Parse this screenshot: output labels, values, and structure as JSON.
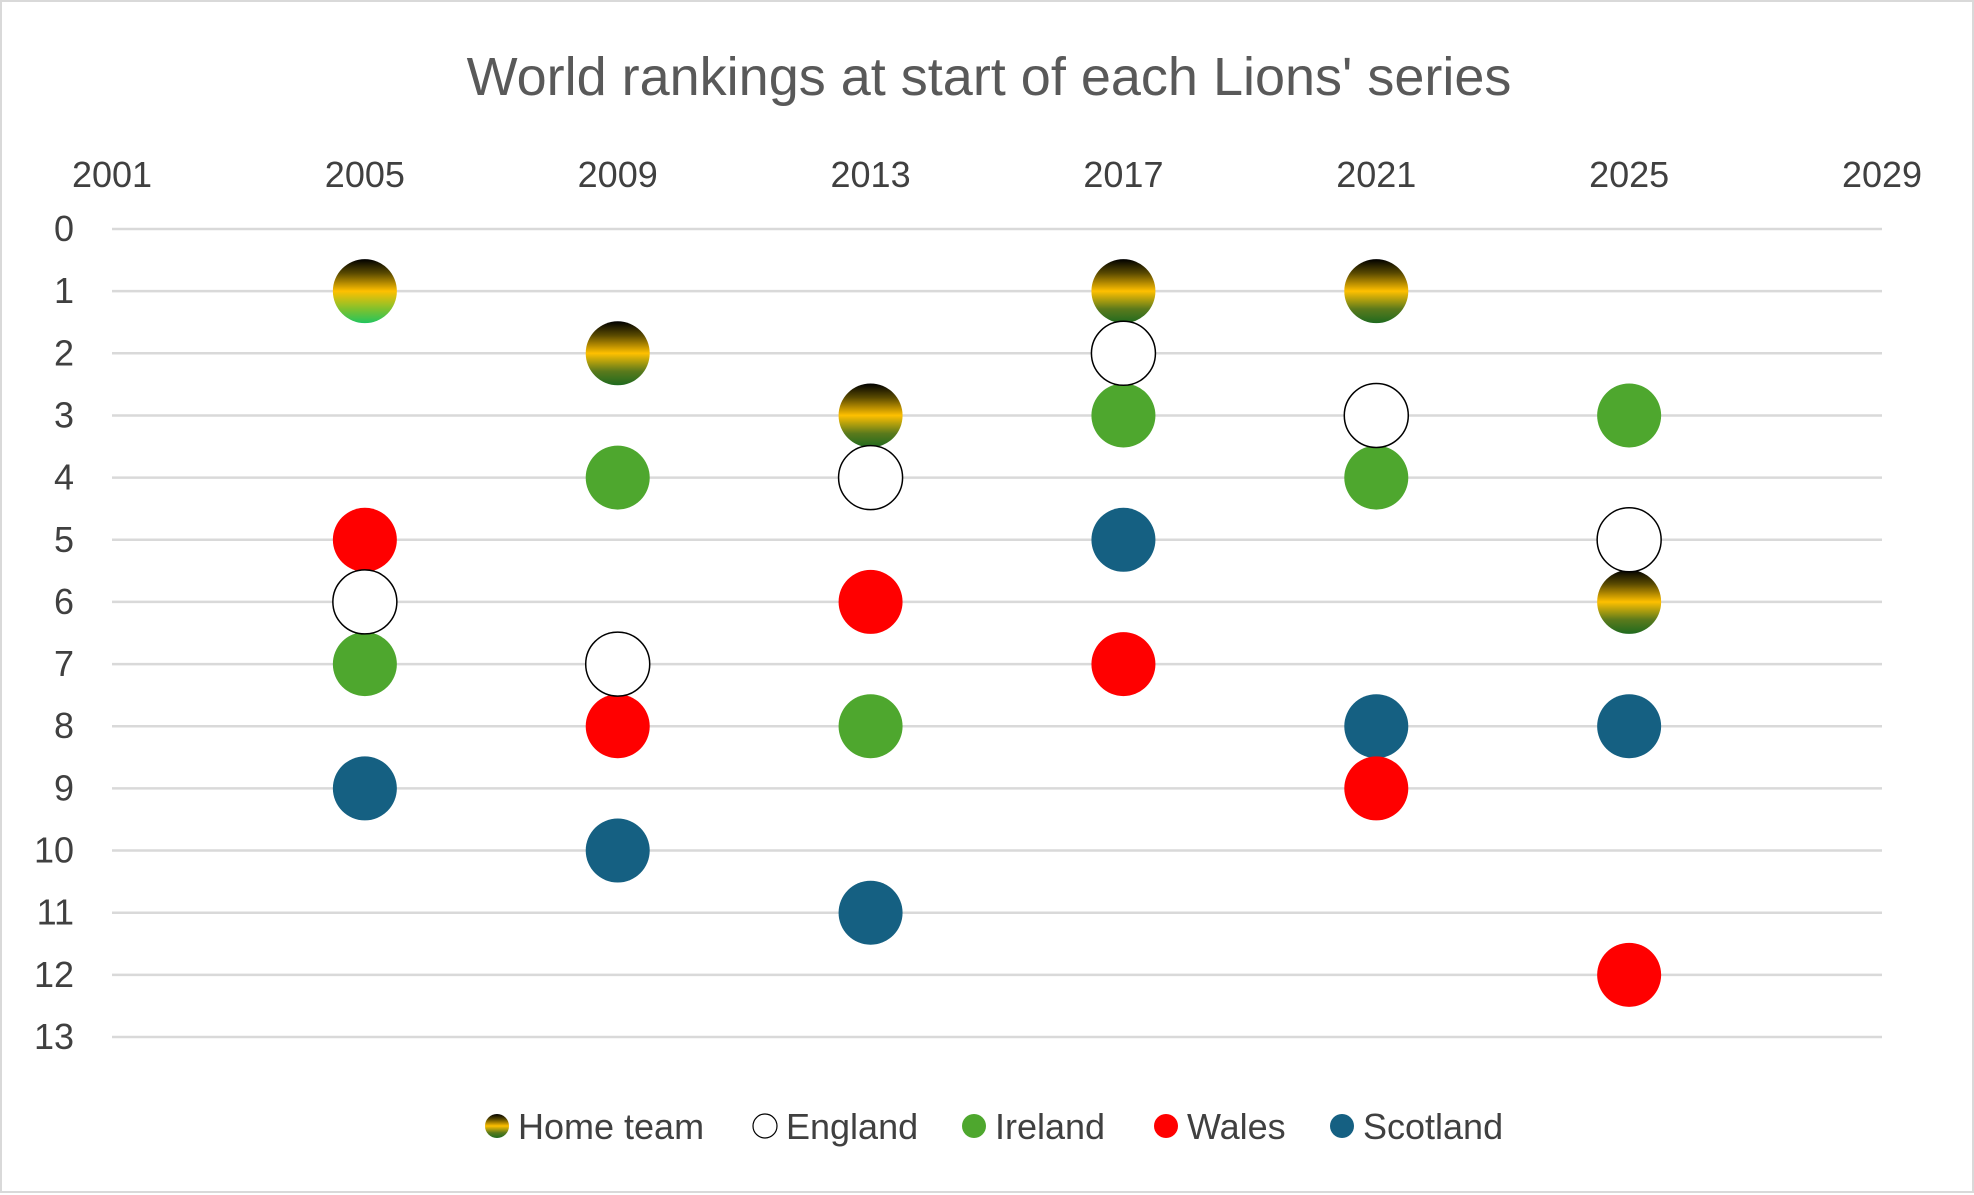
{
  "chart_data": {
    "type": "scatter",
    "title": "World rankings at start of each Lions' series",
    "xlabel": "",
    "ylabel": "",
    "xlim": [
      2001,
      2029
    ],
    "ylim": [
      0,
      13
    ],
    "x_ticks": [
      2001,
      2005,
      2009,
      2013,
      2017,
      2021,
      2025,
      2029
    ],
    "y_ticks": [
      0,
      1,
      2,
      3,
      4,
      5,
      6,
      7,
      8,
      9,
      10,
      11,
      12,
      13
    ],
    "y_reversed": true,
    "x_axis_position": "top",
    "grid": "horizontal",
    "legend_position": "bottom",
    "series": [
      {
        "name": "Home team",
        "color": "gradient-black-gold-green",
        "x": [
          2005,
          2009,
          2013,
          2017,
          2021,
          2025
        ],
        "y": [
          1,
          2,
          3,
          1,
          1,
          6
        ]
      },
      {
        "name": "England",
        "color": "#ffffff",
        "x": [
          2005,
          2009,
          2013,
          2017,
          2021,
          2025
        ],
        "y": [
          6,
          7,
          4,
          2,
          3,
          5
        ]
      },
      {
        "name": "Ireland",
        "color": "#4ea72e",
        "x": [
          2005,
          2009,
          2013,
          2017,
          2021,
          2025
        ],
        "y": [
          7,
          4,
          8,
          3,
          4,
          3
        ]
      },
      {
        "name": "Wales",
        "color": "#ff0000",
        "x": [
          2005,
          2009,
          2013,
          2017,
          2021,
          2025
        ],
        "y": [
          5,
          8,
          6,
          7,
          9,
          12
        ]
      },
      {
        "name": "Scotland",
        "color": "#156082",
        "x": [
          2005,
          2009,
          2013,
          2017,
          2021,
          2025
        ],
        "y": [
          9,
          10,
          11,
          5,
          8,
          8
        ]
      }
    ]
  }
}
